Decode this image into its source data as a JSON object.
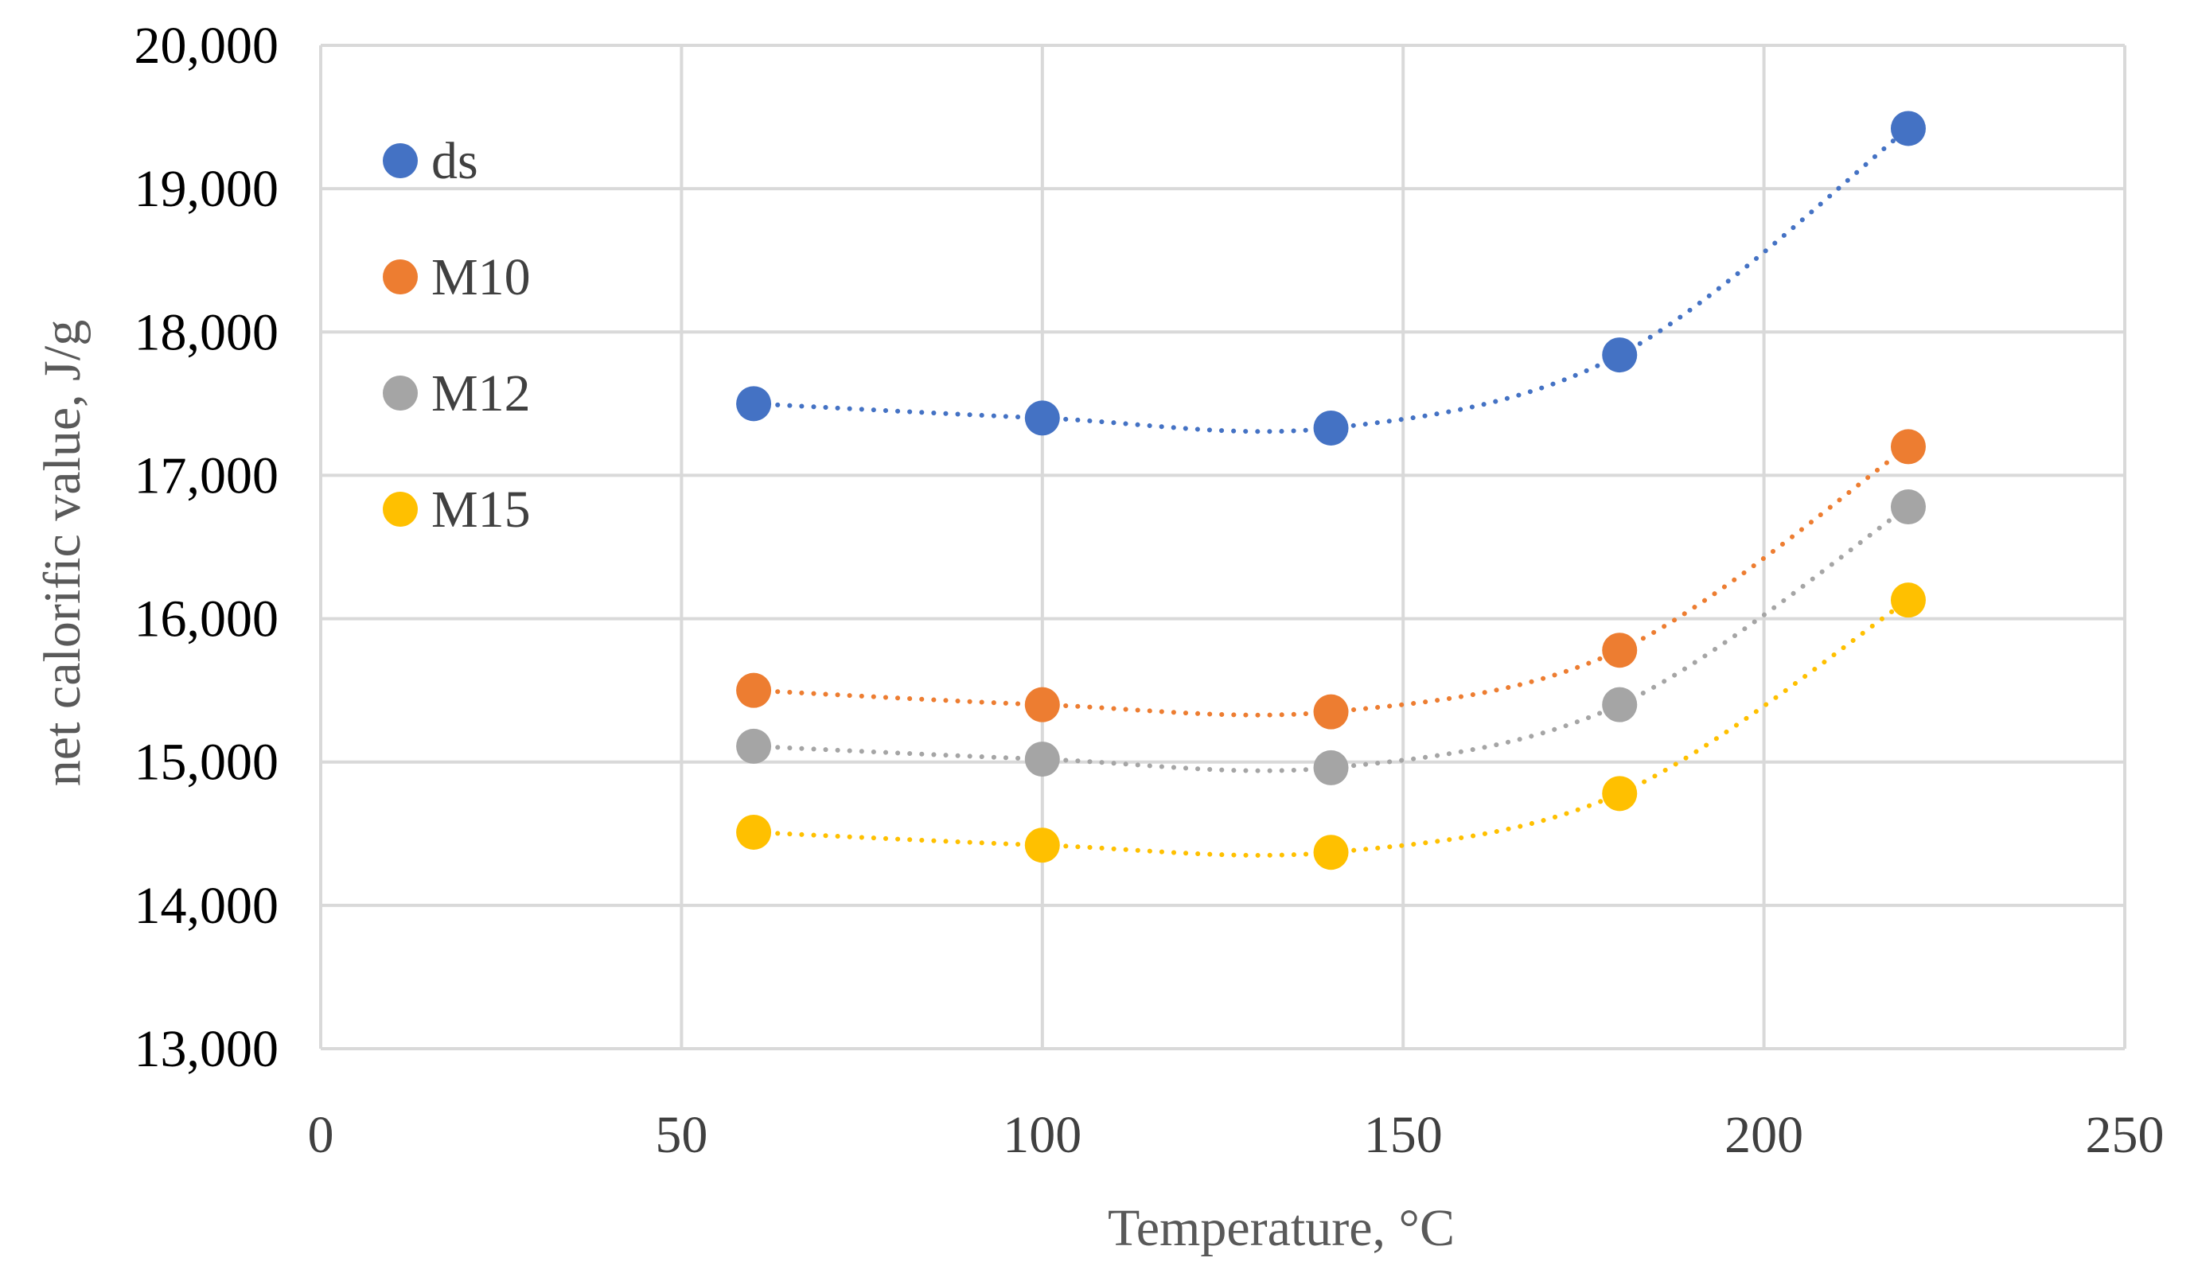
{
  "chart_data": {
    "type": "scatter",
    "title": "",
    "xlabel": "Temperature, °C",
    "ylabel": "net calorific  value, J/g",
    "xlim": [
      0,
      250
    ],
    "ylim": [
      13000,
      20000
    ],
    "x_ticks": [
      0,
      50,
      100,
      150,
      200,
      250
    ],
    "x_tick_labels": [
      "0",
      "50",
      "100",
      "150",
      "200",
      "250"
    ],
    "y_ticks": [
      13000,
      14000,
      15000,
      16000,
      17000,
      18000,
      19000,
      20000
    ],
    "y_tick_labels": [
      "13,000",
      "14,000",
      "15,000",
      "16,000",
      "17,000",
      "18,000",
      "19,000",
      "20,000"
    ],
    "grid": true,
    "legend_position": "top-left",
    "trendline": "dotted polynomial",
    "x": [
      60,
      100,
      140,
      180,
      220
    ],
    "series": [
      {
        "name": "ds",
        "color": "#4472c4",
        "values": [
          17500,
          17400,
          17330,
          17840,
          19420
        ]
      },
      {
        "name": "M10",
        "color": "#ed7d31",
        "values": [
          15500,
          15400,
          15350,
          15780,
          17200
        ]
      },
      {
        "name": "M12",
        "color": "#a5a5a5",
        "values": [
          15110,
          15020,
          14960,
          15400,
          16780
        ]
      },
      {
        "name": "M15",
        "color": "#ffc000",
        "values": [
          14510,
          14420,
          14370,
          14780,
          16130
        ]
      }
    ]
  }
}
